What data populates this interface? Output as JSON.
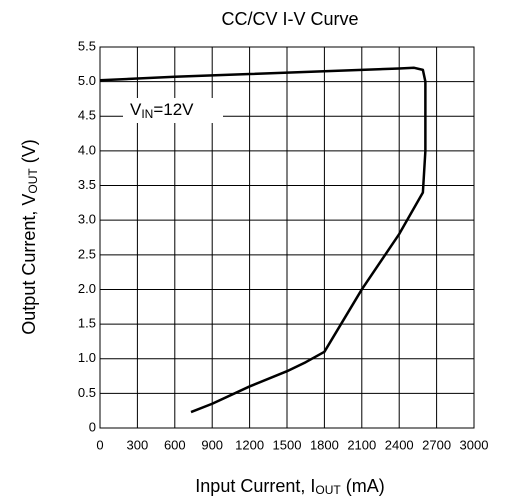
{
  "chart_data": {
    "type": "line",
    "title": "CC/CV I-V Curve",
    "x_label": [
      "Input Current, I",
      "OUT",
      " (mA)"
    ],
    "y_label": [
      "Output Current, V",
      "OUT",
      " (V)"
    ],
    "annotation": [
      "V",
      "IN",
      "=12V"
    ],
    "x": [
      0,
      600,
      1200,
      1800,
      2400,
      2520,
      2590,
      2610,
      2610,
      2590,
      2400,
      2100,
      1800,
      1650,
      1500,
      1200,
      900,
      730
    ],
    "values": [
      5.02,
      5.07,
      5.11,
      5.15,
      5.19,
      5.2,
      5.17,
      5.0,
      4.0,
      3.4,
      2.8,
      2.0,
      1.1,
      0.95,
      0.82,
      0.6,
      0.35,
      0.23
    ],
    "color": "#000000",
    "xlim": [
      0,
      3000
    ],
    "xticks": [
      0,
      300,
      600,
      900,
      1200,
      1500,
      1800,
      2100,
      2400,
      2700,
      3000
    ],
    "ylim": [
      0,
      5.5
    ],
    "yticks": [
      0,
      0.5,
      {
        "value": 1,
        "label": "1.0"
      },
      1.5,
      {
        "value": 2,
        "label": "2.0"
      },
      2.5,
      {
        "value": 3,
        "label": "3.0"
      },
      3.5,
      {
        "value": 4,
        "label": "4.0"
      },
      4.5,
      {
        "value": 5,
        "label": "5.0"
      },
      5.5
    ],
    "grid": true
  }
}
